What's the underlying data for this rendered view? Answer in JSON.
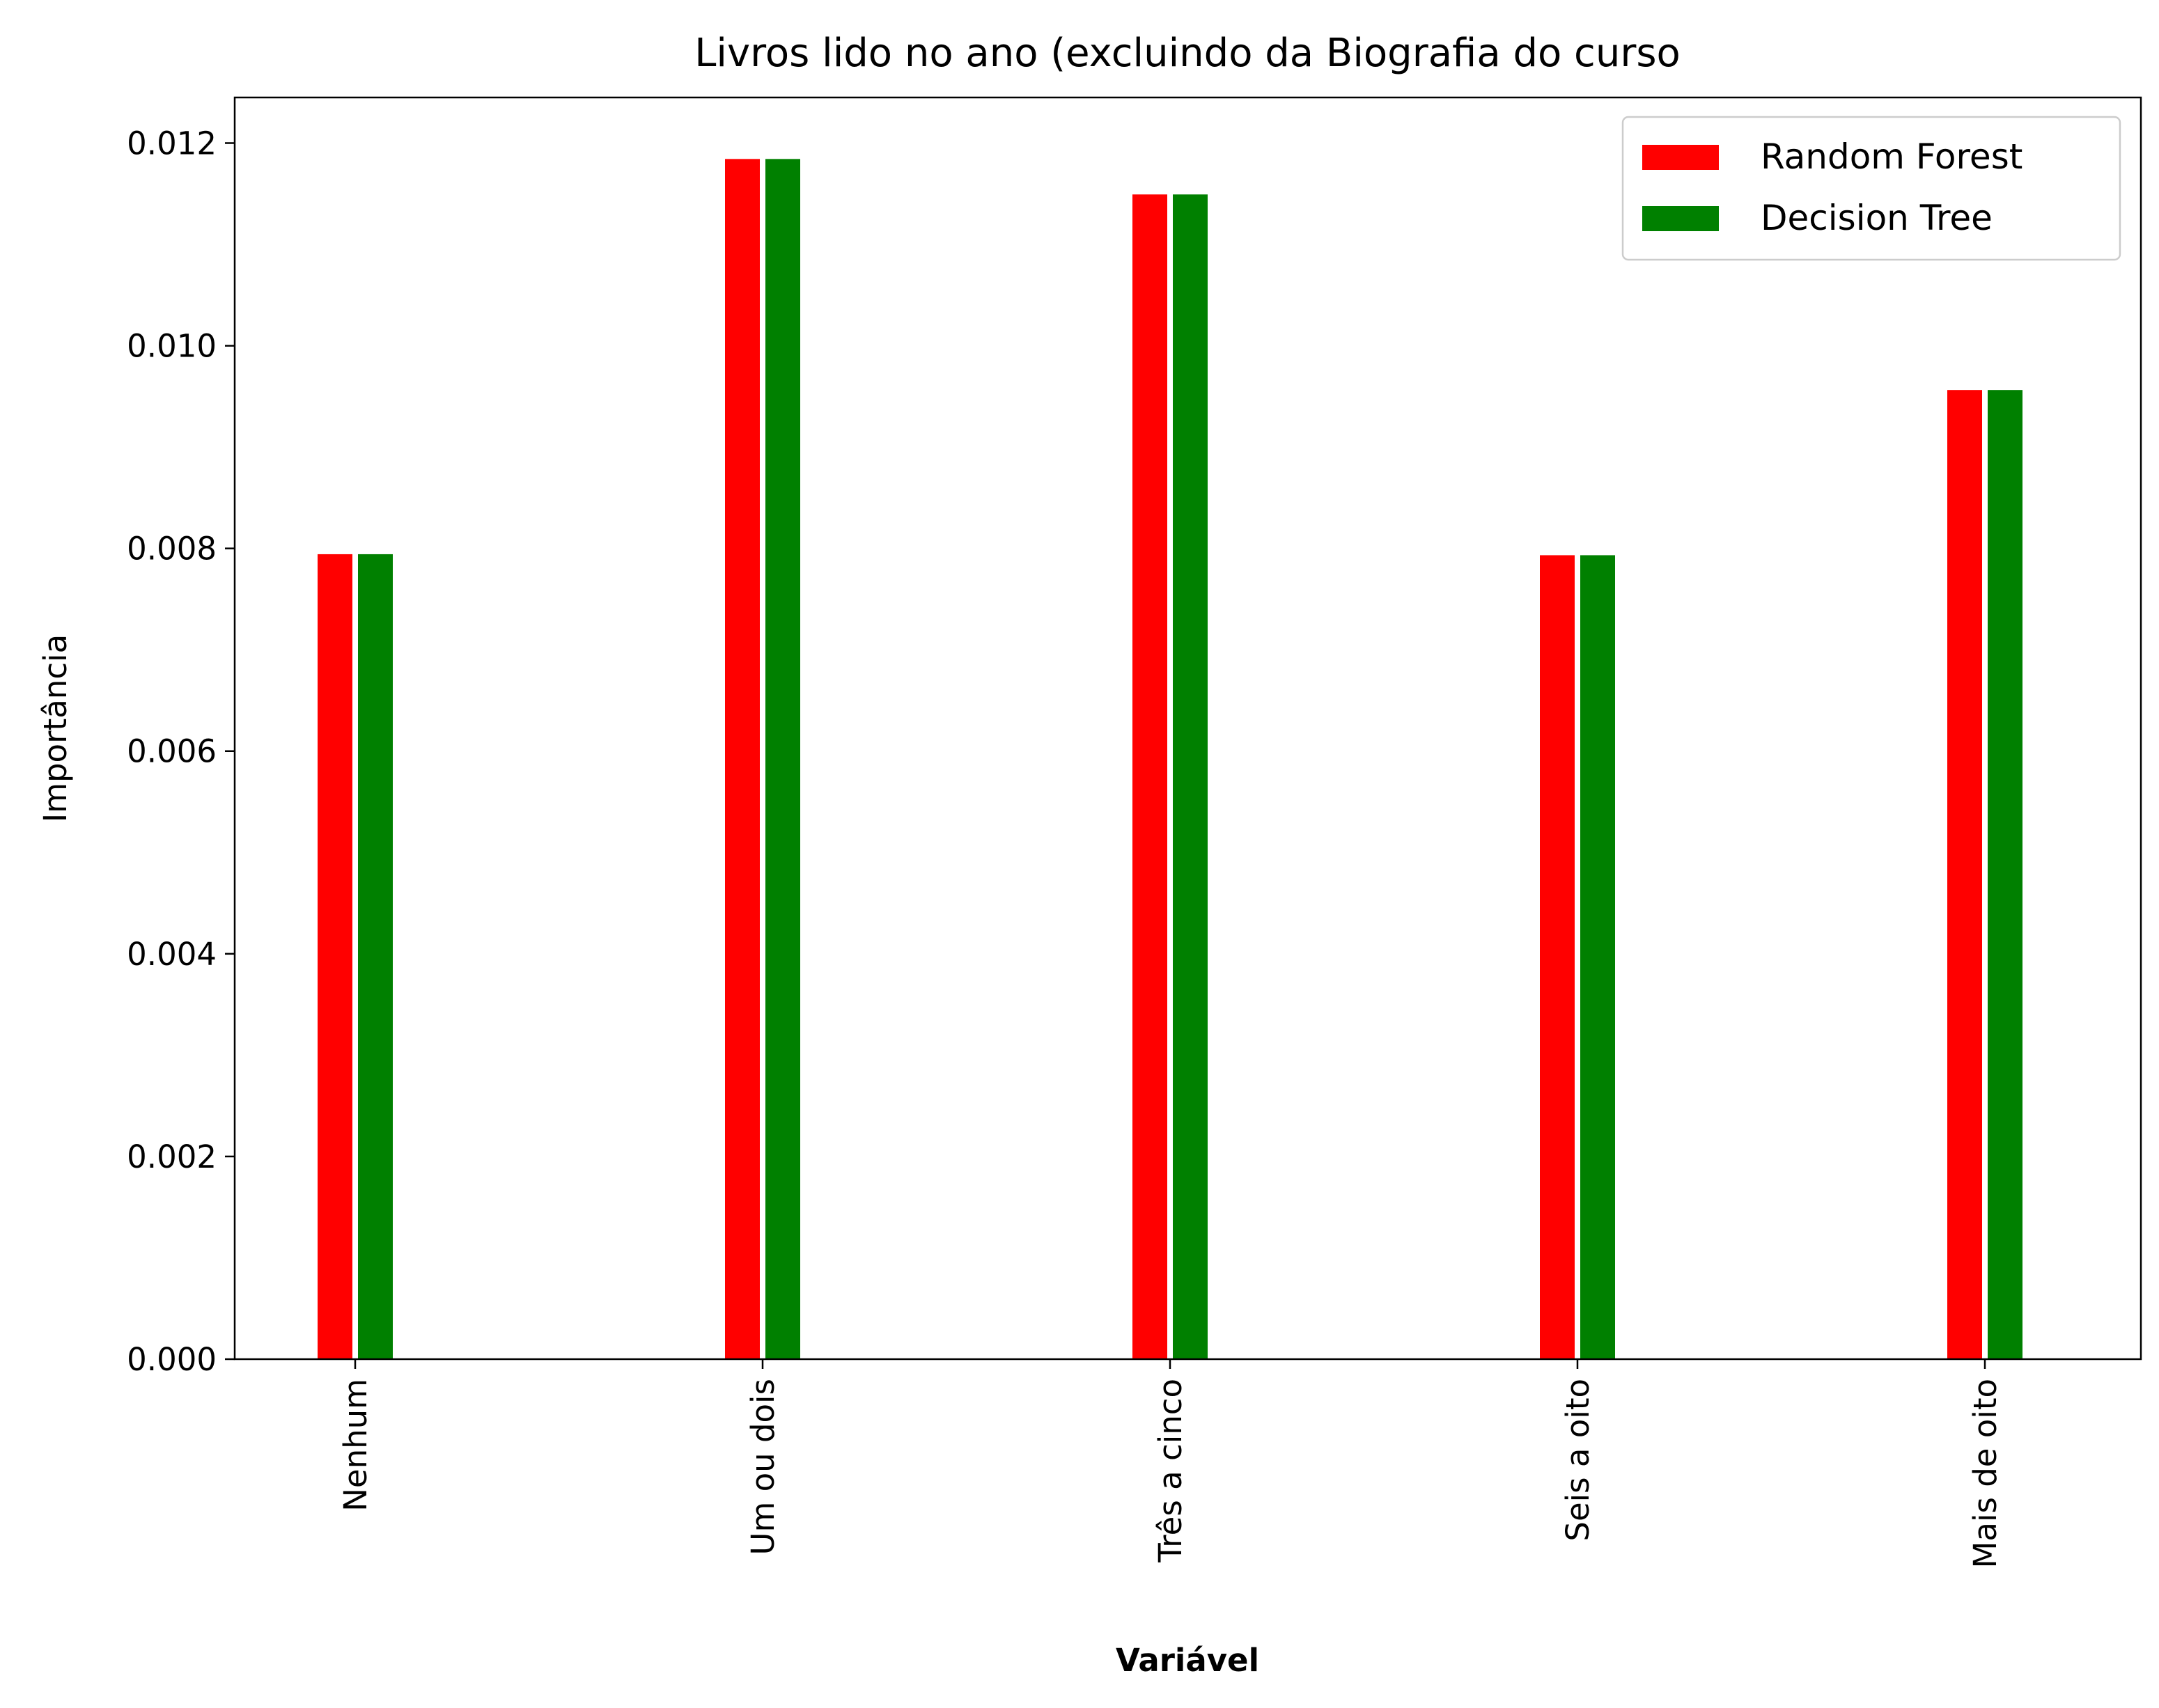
{
  "chart_data": {
    "type": "bar",
    "title": "Livros lido no ano (excluindo da Biografia do curso",
    "xlabel": "Variável",
    "ylabel": "Importância",
    "categories": [
      "Nenhum",
      "Um ou dois",
      "Três a cinco",
      "Seis a oito",
      "Mais de oito"
    ],
    "series": [
      {
        "name": "Random Forest",
        "color": "#ff0000",
        "values": [
          0.00795,
          0.01185,
          0.0115,
          0.00794,
          0.00957
        ]
      },
      {
        "name": "Decision Tree",
        "color": "#008000",
        "values": [
          0.00795,
          0.01185,
          0.0115,
          0.00794,
          0.00957
        ]
      }
    ],
    "ylim": [
      0,
      0.01245
    ],
    "yticks": [
      "0.000",
      "0.002",
      "0.004",
      "0.006",
      "0.008",
      "0.010",
      "0.012"
    ],
    "legend_position": "top-right",
    "grid": false
  }
}
